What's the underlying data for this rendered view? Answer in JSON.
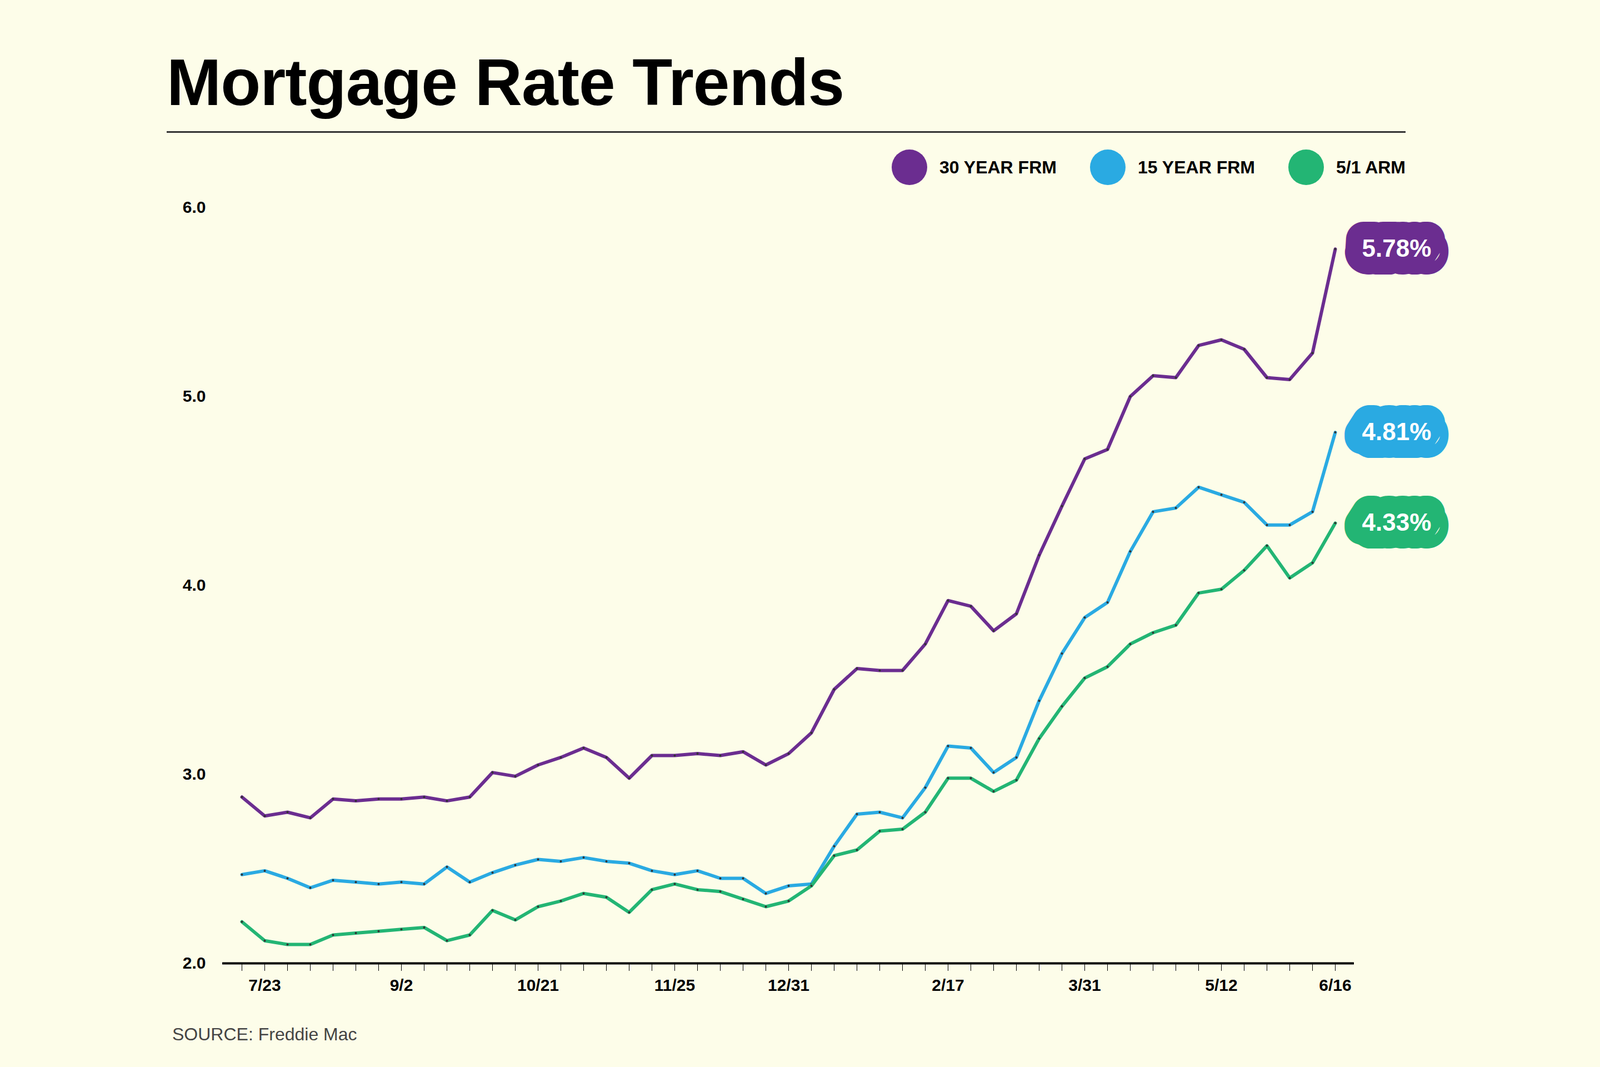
{
  "chart_data": {
    "type": "line",
    "title": "Mortgage Rate Trends",
    "source": "SOURCE: Freddie Mac",
    "categories": [
      null,
      "7/23",
      null,
      null,
      null,
      null,
      null,
      "9/2",
      null,
      null,
      null,
      null,
      null,
      "10/21",
      null,
      null,
      null,
      null,
      null,
      "11/25",
      null,
      null,
      null,
      null,
      "12/31",
      null,
      null,
      null,
      null,
      null,
      null,
      "2/17",
      null,
      null,
      null,
      null,
      null,
      "3/31",
      null,
      null,
      null,
      null,
      null,
      "5/12",
      null,
      null,
      null,
      null,
      "6/16"
    ],
    "series": [
      {
        "name": "30 YEAR FRM",
        "color": "#6b2d90",
        "values": [
          2.88,
          2.78,
          2.8,
          2.77,
          2.87,
          2.86,
          2.87,
          2.87,
          2.88,
          2.86,
          2.88,
          3.01,
          2.99,
          3.05,
          3.09,
          3.14,
          3.09,
          2.98,
          3.1,
          3.1,
          3.11,
          3.1,
          3.12,
          3.05,
          3.11,
          3.22,
          3.45,
          3.56,
          3.55,
          3.55,
          3.69,
          3.92,
          3.89,
          3.76,
          3.85,
          4.16,
          4.42,
          4.67,
          4.72,
          5.0,
          5.11,
          5.1,
          5.27,
          5.3,
          5.25,
          5.1,
          5.09,
          5.23,
          5.78
        ],
        "value_labels": [
          null,
          null,
          null,
          null,
          null,
          null,
          null,
          null,
          null,
          null,
          null,
          null,
          null,
          null,
          null,
          null,
          null,
          null,
          null,
          null,
          null,
          null,
          null,
          null,
          null,
          null,
          null,
          null,
          null,
          null,
          null,
          null,
          null,
          null,
          null,
          null,
          null,
          null,
          null,
          null,
          null,
          null,
          null,
          null,
          null,
          null,
          null,
          null,
          "5.78%"
        ]
      },
      {
        "name": "15 YEAR FRM",
        "color": "#2aaae2",
        "values": [
          2.47,
          2.49,
          2.45,
          2.4,
          2.44,
          2.43,
          2.42,
          2.43,
          2.42,
          2.51,
          2.43,
          2.48,
          2.52,
          2.55,
          2.54,
          2.56,
          2.54,
          2.53,
          2.49,
          2.47,
          2.49,
          2.45,
          2.45,
          2.37,
          2.41,
          2.42,
          2.62,
          2.79,
          2.8,
          2.77,
          2.93,
          3.15,
          3.14,
          3.01,
          3.09,
          3.39,
          3.64,
          3.83,
          3.91,
          4.18,
          4.39,
          4.41,
          4.52,
          4.48,
          4.44,
          4.32,
          4.32,
          4.39,
          4.81
        ],
        "value_labels": [
          null,
          null,
          null,
          null,
          null,
          null,
          null,
          null,
          null,
          null,
          null,
          null,
          null,
          null,
          null,
          null,
          null,
          null,
          null,
          null,
          null,
          null,
          null,
          null,
          null,
          null,
          null,
          null,
          null,
          null,
          null,
          null,
          null,
          null,
          null,
          null,
          null,
          null,
          null,
          null,
          null,
          null,
          null,
          null,
          null,
          null,
          null,
          null,
          "4.81%"
        ]
      },
      {
        "name": "5/1 ARM",
        "color": "#23b574",
        "values": [
          2.22,
          2.12,
          2.1,
          2.1,
          2.15,
          2.16,
          2.17,
          2.18,
          2.19,
          2.12,
          2.15,
          2.28,
          2.23,
          2.3,
          2.33,
          2.37,
          2.35,
          2.27,
          2.39,
          2.42,
          2.39,
          2.38,
          2.34,
          2.3,
          2.33,
          2.41,
          2.57,
          2.6,
          2.7,
          2.71,
          2.8,
          2.98,
          2.98,
          2.91,
          2.97,
          3.19,
          3.36,
          3.51,
          3.57,
          3.69,
          3.75,
          3.79,
          3.96,
          3.98,
          4.08,
          4.21,
          4.04,
          4.12,
          4.33
        ],
        "value_labels": [
          null,
          null,
          null,
          null,
          null,
          null,
          null,
          null,
          null,
          null,
          null,
          null,
          null,
          null,
          null,
          null,
          null,
          null,
          null,
          null,
          null,
          null,
          null,
          null,
          null,
          null,
          null,
          null,
          null,
          null,
          null,
          null,
          null,
          null,
          null,
          null,
          null,
          null,
          null,
          null,
          null,
          null,
          null,
          null,
          null,
          null,
          null,
          null,
          "4.33%"
        ]
      }
    ],
    "ylim": [
      2,
      6
    ],
    "yticks": [
      2,
      3,
      4,
      5,
      6
    ],
    "grid": false,
    "legend": "top-right"
  }
}
